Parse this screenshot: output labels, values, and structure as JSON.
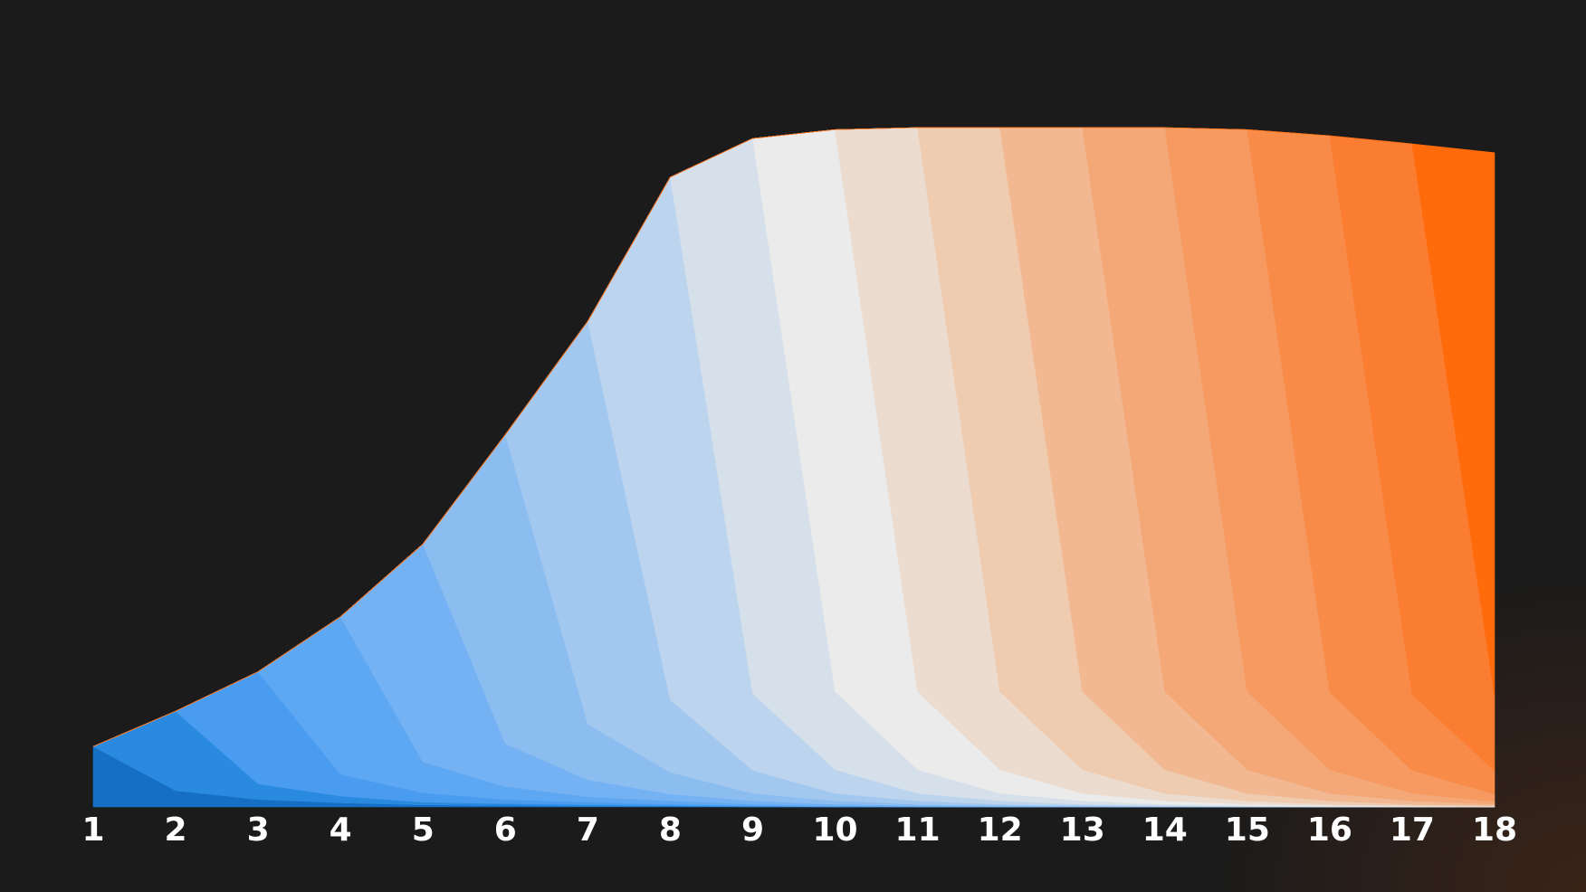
{
  "chart_data": {
    "type": "stacked-area",
    "categories": [
      "1",
      "2",
      "3",
      "4",
      "5",
      "6",
      "7",
      "8",
      "9",
      "10",
      "11",
      "12",
      "13",
      "14",
      "15",
      "16",
      "17",
      "18"
    ],
    "ylim": [
      0,
      100
    ],
    "series": [
      {
        "color": "#1570c4",
        "values": [
          8.9,
          2.4,
          1.1,
          0.6,
          0.3,
          0.2,
          0.1,
          0.1,
          0,
          0,
          0,
          0,
          0,
          0,
          0,
          0,
          0,
          0
        ]
      },
      {
        "color": "#2a8ae0",
        "values": [
          0,
          11.7,
          2.3,
          1.0,
          0.4,
          0.3,
          0.2,
          0.1,
          0.1,
          0,
          0,
          0,
          0,
          0,
          0,
          0,
          0,
          0
        ]
      },
      {
        "color": "#4a9cf0",
        "values": [
          0,
          0,
          16.5,
          3.2,
          1.4,
          0.6,
          0.4,
          0.2,
          0.1,
          0.1,
          0,
          0,
          0,
          0,
          0,
          0,
          0,
          0
        ]
      },
      {
        "color": "#5ea8f3",
        "values": [
          0,
          0,
          0,
          23.2,
          4.5,
          1.9,
          0.8,
          0.5,
          0.2,
          0.1,
          0.1,
          0,
          0,
          0,
          0,
          0,
          0,
          0
        ]
      },
      {
        "color": "#74b2f3",
        "values": [
          0,
          0,
          0,
          0,
          32.1,
          6.3,
          2.5,
          1.0,
          0.5,
          0.2,
          0.1,
          0.1,
          0,
          0,
          0,
          0,
          0,
          0
        ]
      },
      {
        "color": "#8cbdf1",
        "values": [
          0,
          0,
          0,
          0,
          0,
          45.5,
          8.2,
          3.2,
          1.1,
          0.5,
          0.2,
          0.1,
          0.1,
          0,
          0,
          0,
          0,
          0
        ]
      },
      {
        "color": "#a3c8f0",
        "values": [
          0,
          0,
          0,
          0,
          0,
          0,
          59.3,
          10.7,
          3.4,
          1.1,
          0.5,
          0.2,
          0.1,
          0.1,
          0,
          0,
          0,
          0
        ]
      },
      {
        "color": "#bdd4ef",
        "values": [
          0,
          0,
          0,
          0,
          0,
          0,
          0,
          76.9,
          11.3,
          3.5,
          1.1,
          0.5,
          0.2,
          0.1,
          0.1,
          0,
          0,
          0
        ]
      },
      {
        "color": "#d5e0ea",
        "values": [
          0,
          0,
          0,
          0,
          0,
          0,
          0,
          0,
          81.7,
          11.5,
          3.5,
          1.1,
          0.5,
          0.2,
          0.1,
          0.1,
          0,
          0
        ]
      },
      {
        "color": "#ebebeb",
        "values": [
          0,
          0,
          0,
          0,
          0,
          0,
          0,
          0,
          0,
          82.7,
          11.5,
          3.5,
          1.1,
          0.5,
          0.2,
          0.1,
          0.1,
          0
        ]
      },
      {
        "color": "#ecdccf",
        "values": [
          0,
          0,
          0,
          0,
          0,
          0,
          0,
          0,
          0,
          0,
          83,
          11.5,
          3.5,
          1.1,
          0.5,
          0.2,
          0.1,
          0.1
        ]
      },
      {
        "color": "#efcbb0",
        "values": [
          0,
          0,
          0,
          0,
          0,
          0,
          0,
          0,
          0,
          0,
          0,
          83,
          11.5,
          3.5,
          1.1,
          0.5,
          0.2,
          0.1
        ]
      },
      {
        "color": "#f2b891",
        "values": [
          0,
          0,
          0,
          0,
          0,
          0,
          0,
          0,
          0,
          0,
          0,
          0,
          83,
          11.5,
          3.5,
          1.1,
          0.5,
          0.2
        ]
      },
      {
        "color": "#f4a878",
        "values": [
          0,
          0,
          0,
          0,
          0,
          0,
          0,
          0,
          0,
          0,
          0,
          0,
          0,
          83,
          11.5,
          3.5,
          1.1,
          0.4
        ]
      },
      {
        "color": "#f69a61",
        "values": [
          0,
          0,
          0,
          0,
          0,
          0,
          0,
          0,
          0,
          0,
          0,
          0,
          0,
          0,
          82.7,
          11.4,
          3.4,
          1.1
        ]
      },
      {
        "color": "#f88b48",
        "values": [
          0,
          0,
          0,
          0,
          0,
          0,
          0,
          0,
          0,
          0,
          0,
          0,
          0,
          0,
          0,
          81.9,
          11.2,
          3.4
        ]
      },
      {
        "color": "#fb7d31",
        "values": [
          0,
          0,
          0,
          0,
          0,
          0,
          0,
          0,
          0,
          0,
          0,
          0,
          0,
          0,
          0,
          0,
          81.0,
          11.1
        ]
      },
      {
        "color": "#ff6a0a",
        "values": [
          0,
          0,
          0,
          0,
          0,
          0,
          0,
          0,
          0,
          0,
          0,
          0,
          0,
          0,
          0,
          0,
          0,
          79.9
        ]
      }
    ]
  }
}
